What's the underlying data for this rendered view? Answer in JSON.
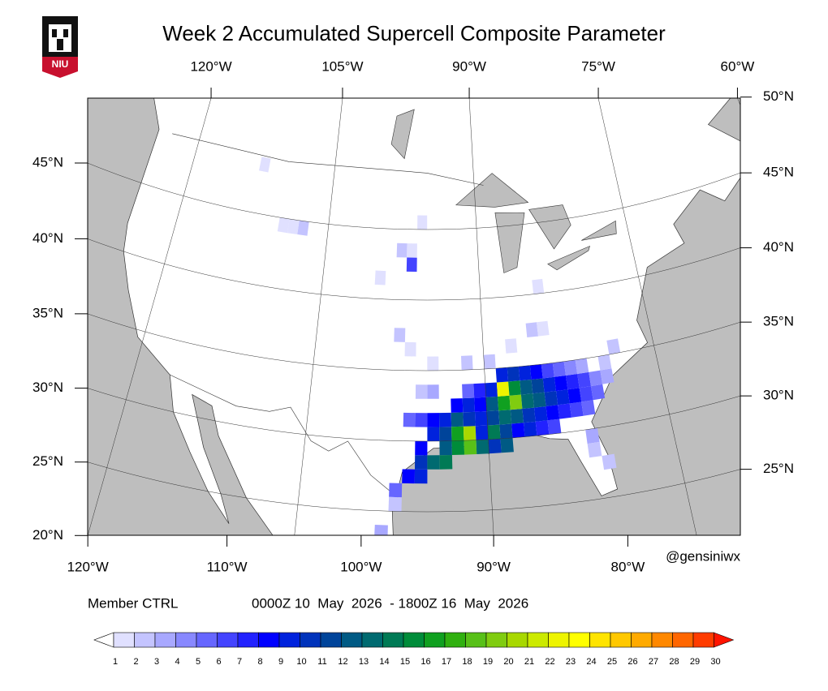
{
  "header": {
    "title": "Week 2 Accumulated Supercell Composite Parameter",
    "logo": "NIU"
  },
  "map": {
    "lon_top": [
      {
        "value": -120,
        "label": "120°W"
      },
      {
        "value": -105,
        "label": "105°W"
      },
      {
        "value": -90,
        "label": "90°W"
      },
      {
        "value": -75,
        "label": "75°W"
      },
      {
        "value": -60,
        "label": "60°W"
      }
    ],
    "lat_right": [
      {
        "value": 50,
        "label": "50°N"
      },
      {
        "value": 45,
        "label": "45°N"
      },
      {
        "value": 40,
        "label": "40°N"
      },
      {
        "value": 35,
        "label": "35°N"
      },
      {
        "value": 30,
        "label": "30°N"
      },
      {
        "value": 25,
        "label": "25°N"
      }
    ],
    "lat_left": [
      {
        "value": 45,
        "label": "45°N"
      },
      {
        "value": 40,
        "label": "40°N"
      },
      {
        "value": 35,
        "label": "35°N"
      },
      {
        "value": 30,
        "label": "30°N"
      },
      {
        "value": 25,
        "label": "25°N"
      },
      {
        "value": 20,
        "label": "20°N"
      }
    ],
    "lon_bottom": [
      {
        "value": -120,
        "label": "120°W"
      },
      {
        "value": -110,
        "label": "110°W"
      },
      {
        "value": -100,
        "label": "100°W"
      },
      {
        "value": -90,
        "label": "90°W"
      },
      {
        "value": -80,
        "label": "80°W"
      }
    ],
    "cells": [
      [
        -97,
        27,
        8
      ],
      [
        -96,
        27,
        9
      ],
      [
        -96,
        28,
        10
      ],
      [
        -95,
        28,
        13
      ],
      [
        -94,
        28,
        14
      ],
      [
        -94,
        29,
        12
      ],
      [
        -93,
        29,
        15
      ],
      [
        -92,
        29,
        18
      ],
      [
        -91,
        29,
        13
      ],
      [
        -90,
        29,
        10
      ],
      [
        -89,
        29,
        12
      ],
      [
        -96,
        29,
        8
      ],
      [
        -95,
        30,
        9
      ],
      [
        -94,
        30,
        11
      ],
      [
        -93,
        30,
        16
      ],
      [
        -92,
        30,
        20
      ],
      [
        -91,
        30,
        9
      ],
      [
        -90,
        30,
        14
      ],
      [
        -89,
        30,
        11
      ],
      [
        -88,
        30,
        8
      ],
      [
        -87,
        30,
        9
      ],
      [
        -86,
        30,
        7
      ],
      [
        -85,
        30,
        6
      ],
      [
        -97,
        31,
        5
      ],
      [
        -96,
        31,
        6
      ],
      [
        -95,
        31,
        8
      ],
      [
        -94,
        31,
        9
      ],
      [
        -93,
        31,
        12
      ],
      [
        -92,
        31,
        10
      ],
      [
        -91,
        31,
        9
      ],
      [
        -90,
        31,
        11
      ],
      [
        -89,
        31,
        13
      ],
      [
        -88,
        31,
        12
      ],
      [
        -87,
        31,
        10
      ],
      [
        -86,
        31,
        9
      ],
      [
        -85,
        31,
        8
      ],
      [
        -84,
        31,
        7
      ],
      [
        -83,
        31,
        6
      ],
      [
        -82,
        31,
        5
      ],
      [
        -93,
        32,
        8
      ],
      [
        -92,
        32,
        9
      ],
      [
        -91,
        32,
        8
      ],
      [
        -90,
        32,
        12
      ],
      [
        -89,
        32,
        16
      ],
      [
        -88,
        32,
        19
      ],
      [
        -87,
        32,
        13
      ],
      [
        -86,
        32,
        12
      ],
      [
        -85,
        32,
        10
      ],
      [
        -84,
        32,
        9
      ],
      [
        -83,
        32,
        8
      ],
      [
        -82,
        32,
        6
      ],
      [
        -81,
        32,
        5
      ],
      [
        -92,
        33,
        5
      ],
      [
        -91,
        33,
        7
      ],
      [
        -90,
        33,
        9
      ],
      [
        -89,
        33,
        22
      ],
      [
        -88,
        33,
        15
      ],
      [
        -87,
        33,
        12
      ],
      [
        -86,
        33,
        11
      ],
      [
        -85,
        33,
        9
      ],
      [
        -84,
        33,
        8
      ],
      [
        -83,
        33,
        7
      ],
      [
        -82,
        33,
        6
      ],
      [
        -81,
        33,
        4
      ],
      [
        -80,
        33,
        3
      ],
      [
        -89,
        34,
        9
      ],
      [
        -88,
        34,
        10
      ],
      [
        -87,
        34,
        9
      ],
      [
        -86,
        34,
        8
      ],
      [
        -85,
        34,
        6
      ],
      [
        -84,
        34,
        5
      ],
      [
        -83,
        34,
        4
      ],
      [
        -82,
        34,
        3
      ],
      [
        -80,
        34,
        2
      ],
      [
        -79,
        35,
        2
      ],
      [
        -98,
        26,
        5
      ],
      [
        -98,
        25,
        2
      ],
      [
        -99,
        23,
        3
      ],
      [
        -99,
        21,
        2
      ],
      [
        -82,
        29,
        3
      ],
      [
        -82,
        28,
        2
      ],
      [
        -81,
        27,
        2
      ],
      [
        -97,
        36,
        1
      ],
      [
        -98,
        37,
        2
      ],
      [
        -95,
        33,
        3
      ],
      [
        -96,
        33,
        2
      ],
      [
        -95,
        35,
        1
      ],
      [
        -92,
        35,
        2
      ],
      [
        -90,
        35,
        2
      ],
      [
        -88,
        36,
        1
      ],
      [
        -86,
        37,
        2
      ],
      [
        -85,
        37,
        1
      ],
      [
        -108,
        44,
        2
      ],
      [
        -109,
        44,
        1
      ],
      [
        -110,
        44,
        1
      ],
      [
        -100,
        41,
        1
      ],
      [
        -98,
        43,
        2
      ],
      [
        -97,
        43,
        1
      ],
      [
        -96,
        45,
        1
      ],
      [
        -97,
        42,
        6
      ],
      [
        -113,
        48,
        1
      ],
      [
        -85,
        40,
        1
      ],
      [
        -81,
        20,
        1
      ],
      [
        -84,
        21,
        1
      ]
    ],
    "colorbar": {
      "levels": [
        1,
        2,
        3,
        4,
        5,
        6,
        7,
        8,
        9,
        10,
        11,
        12,
        13,
        14,
        15,
        16,
        17,
        18,
        19,
        20,
        21,
        22,
        23,
        24,
        25,
        26,
        27,
        28,
        29,
        30
      ],
      "colors": [
        "#ffffff",
        "#e0e0ff",
        "#c4c4ff",
        "#a8a8ff",
        "#8888ff",
        "#6666ff",
        "#4444ff",
        "#2222ff",
        "#0000ff",
        "#0022dd",
        "#0033bb",
        "#00449a",
        "#005a84",
        "#006a70",
        "#007a55",
        "#008c3a",
        "#10a020",
        "#30b010",
        "#58c018",
        "#80cc10",
        "#a8d800",
        "#ccea00",
        "#eef400",
        "#ffff00",
        "#ffe400",
        "#ffc800",
        "#ffaa00",
        "#ff8800",
        "#ff6600",
        "#ff3c00",
        "#ff1400"
      ]
    }
  },
  "footer": {
    "credit": "@gensiniwx",
    "member": "Member CTRL",
    "period": "0000Z 10  May  2026  - 1800Z 16  May  2026"
  }
}
